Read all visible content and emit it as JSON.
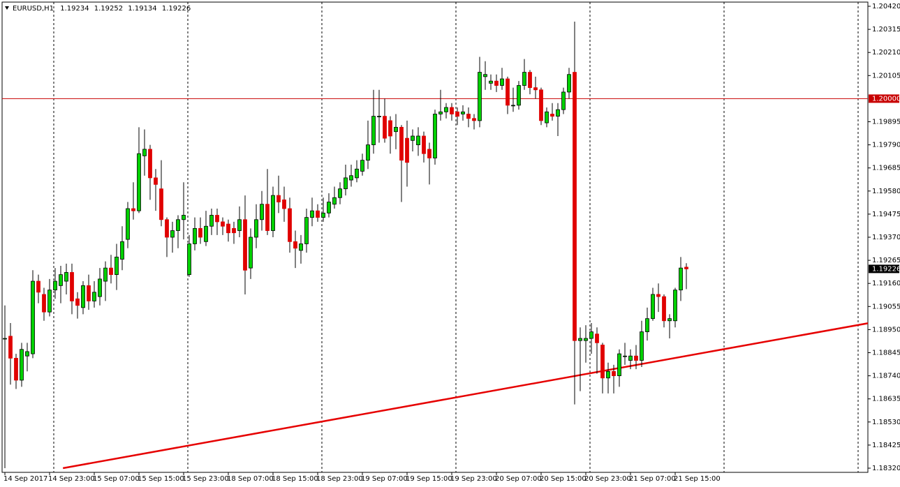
{
  "chart_data": {
    "type": "candlestick",
    "title": "EURUSD,H1",
    "categories": [
      "14 Sep 2017",
      null,
      null,
      null,
      null,
      null,
      null,
      null,
      "14 Sep 23:00",
      null,
      null,
      null,
      null,
      null,
      null,
      null,
      "15 Sep 07:00",
      null,
      null,
      null,
      null,
      null,
      null,
      null,
      "15 Sep 15:00",
      null,
      null,
      null,
      null,
      null,
      null,
      null,
      "15 Sep 23:00",
      null,
      null,
      null,
      null,
      null,
      null,
      null,
      "18 Sep 07:00",
      null,
      null,
      null,
      null,
      null,
      null,
      null,
      "18 Sep 15:00",
      null,
      null,
      null,
      null,
      null,
      null,
      null,
      "18 Sep 23:00",
      null,
      null,
      null,
      null,
      null,
      null,
      null,
      "19 Sep 07:00",
      null,
      null,
      null,
      null,
      null,
      null,
      null,
      "19 Sep 15:00",
      null,
      null,
      null,
      null,
      null,
      null,
      null,
      "19 Sep 23:00",
      null,
      null,
      null,
      null,
      null,
      null,
      null,
      "20 Sep 07:00",
      null,
      null,
      null,
      null,
      null,
      null,
      null,
      "20 Sep 15:00",
      null,
      null,
      null,
      null,
      null,
      null,
      null,
      "20 Sep 23:00",
      null,
      null,
      null,
      null,
      null,
      null,
      null,
      "21 Sep 07:00",
      null,
      null,
      null,
      null,
      null,
      null,
      null,
      "21 Sep 15:00",
      null,
      null
    ],
    "open": [
      1.1891,
      1.1892,
      1.1882,
      1.1872,
      1.1883,
      1.1884,
      1.1917,
      1.1911,
      1.1903,
      1.1913,
      1.1915,
      1.1917,
      1.1921,
      1.1909,
      1.1905,
      1.1915,
      1.1908,
      1.191,
      1.1917,
      1.1923,
      1.192,
      1.1927,
      1.1936,
      1.195,
      1.1949,
      1.1974,
      1.1977,
      1.1964,
      1.1959,
      1.1945,
      1.1937,
      1.194,
      1.1945,
      1.192,
      1.1934,
      1.1941,
      1.1935,
      1.1942,
      1.1947,
      1.1944,
      1.1943,
      1.1941,
      1.194,
      1.1945,
      1.1923,
      1.1937,
      1.1945,
      1.1952,
      1.194,
      1.1956,
      1.1954,
      1.195,
      1.1935,
      1.1931,
      1.1934,
      1.1946,
      1.1949,
      1.1946,
      1.1948,
      1.1952,
      1.1955,
      1.1959,
      1.1963,
      1.1964,
      1.1967,
      1.1972,
      1.1979,
      1.1992,
      1.1992,
      1.199,
      1.1985,
      1.1987,
      1.1982,
      1.1981,
      1.1979,
      1.1983,
      1.1977,
      1.1973,
      1.1993,
      1.1994,
      1.1996,
      1.1994,
      1.1993,
      1.1993,
      1.1991,
      1.199,
      1.201,
      1.2007,
      1.2008,
      1.2006,
      1.2009,
      1.1997,
      1.1997,
      1.2006,
      1.2012,
      1.2005,
      1.2004,
      1.1989,
      1.1993,
      1.1992,
      1.1995,
      1.2003,
      1.2012,
      1.189,
      1.189,
      1.1891,
      1.1893,
      1.1888,
      1.1873,
      1.1876,
      1.1874,
      1.1883,
      1.1881,
      1.1883,
      1.1881,
      1.1894,
      1.19,
      1.1911,
      1.191,
      1.1899,
      1.1899,
      1.1913,
      1.19234
    ],
    "high": [
      1.1906,
      1.1898,
      1.1884,
      1.1889,
      1.1889,
      1.1922,
      1.192,
      1.1914,
      1.1918,
      1.1923,
      1.1924,
      1.1925,
      1.1925,
      1.1912,
      1.1917,
      1.192,
      1.1917,
      1.1923,
      1.1926,
      1.1929,
      1.1934,
      1.1942,
      1.1953,
      1.1962,
      1.1987,
      1.1986,
      1.1979,
      1.1968,
      1.1972,
      1.1946,
      1.1944,
      1.1947,
      1.1962,
      1.1938,
      1.1946,
      1.1946,
      1.1949,
      1.195,
      1.195,
      1.1946,
      1.1945,
      1.1944,
      1.1951,
      1.1956,
      1.1941,
      1.1952,
      1.1958,
      1.1968,
      1.196,
      1.1965,
      1.196,
      1.1955,
      1.194,
      1.1938,
      1.195,
      1.1955,
      1.1952,
      1.1955,
      1.1957,
      1.196,
      1.1962,
      1.197,
      1.197,
      1.1972,
      1.1975,
      1.199,
      1.2004,
      1.2004,
      1.2,
      1.1992,
      1.1993,
      1.1988,
      1.199,
      1.1986,
      1.1987,
      1.1985,
      1.198,
      1.1995,
      1.2004,
      1.1998,
      1.1998,
      1.1996,
      1.1997,
      1.1996,
      1.1993,
      1.2019,
      1.2017,
      1.2011,
      1.2011,
      1.2014,
      1.201,
      1.2005,
      1.2008,
      1.2018,
      1.2013,
      1.201,
      1.2005,
      1.1996,
      1.1998,
      1.1998,
      1.2005,
      1.2014,
      1.2035,
      1.1896,
      1.1897,
      1.1898,
      1.1896,
      1.1889,
      1.188,
      1.1879,
      1.1886,
      1.1889,
      1.1886,
      1.1888,
      1.1899,
      1.1905,
      1.1914,
      1.1916,
      1.1911,
      1.1902,
      1.1914,
      1.1928,
      1.19252
    ],
    "low": [
      1.1832,
      1.187,
      1.1868,
      1.1869,
      1.1876,
      1.1882,
      1.1907,
      1.1899,
      1.1901,
      1.1909,
      1.1907,
      1.1911,
      1.1902,
      1.19,
      1.1902,
      1.1904,
      1.1905,
      1.1906,
      1.1908,
      1.1916,
      1.1913,
      1.1922,
      1.1932,
      1.1945,
      1.1948,
      1.1965,
      1.1954,
      1.1949,
      1.1942,
      1.1928,
      1.193,
      1.1932,
      1.1936,
      1.1919,
      1.1931,
      1.1934,
      1.1933,
      1.1938,
      1.1938,
      1.1938,
      1.1935,
      1.1934,
      1.1937,
      1.1911,
      1.1918,
      1.1932,
      1.194,
      1.1938,
      1.1937,
      1.1948,
      1.1944,
      1.193,
      1.1923,
      1.1925,
      1.193,
      1.1942,
      1.1944,
      1.1944,
      1.1946,
      1.195,
      1.1952,
      1.1956,
      1.196,
      1.1962,
      1.1965,
      1.1968,
      1.1975,
      1.198,
      1.198,
      1.1975,
      1.1977,
      1.1953,
      1.196,
      1.1976,
      1.1974,
      1.1971,
      1.1961,
      1.197,
      1.199,
      1.1991,
      1.199,
      1.1988,
      1.199,
      1.1987,
      1.1986,
      1.1987,
      1.2004,
      1.2004,
      1.2003,
      1.2004,
      1.1993,
      1.1994,
      1.1995,
      1.2004,
      1.2002,
      1.2,
      1.1988,
      1.1987,
      1.199,
      1.1983,
      1.1993,
      1.2,
      1.1861,
      1.1867,
      1.188,
      1.1884,
      1.1875,
      1.1866,
      1.1866,
      1.1866,
      1.1869,
      1.1879,
      1.1877,
      1.1877,
      1.1878,
      1.189,
      1.1899,
      1.1903,
      1.1896,
      1.1891,
      1.1896,
      1.1908,
      1.19134
    ],
    "close": [
      1.1891,
      1.1882,
      1.1872,
      1.1886,
      1.1885,
      1.1917,
      1.1912,
      1.1903,
      1.1913,
      1.1917,
      1.192,
      1.1921,
      1.1908,
      1.1906,
      1.1915,
      1.1908,
      1.1912,
      1.1918,
      1.1923,
      1.192,
      1.1928,
      1.1935,
      1.195,
      1.1949,
      1.1975,
      1.1977,
      1.1964,
      1.1961,
      1.1945,
      1.1937,
      1.194,
      1.1945,
      1.1947,
      1.1934,
      1.1941,
      1.1937,
      1.1942,
      1.1947,
      1.1944,
      1.1942,
      1.1939,
      1.1939,
      1.1945,
      1.1922,
      1.1937,
      1.1945,
      1.1952,
      1.194,
      1.1956,
      1.1953,
      1.195,
      1.1935,
      1.1932,
      1.1934,
      1.1946,
      1.1949,
      1.1946,
      1.1948,
      1.1953,
      1.1955,
      1.1959,
      1.1964,
      1.1965,
      1.1968,
      1.1972,
      1.1979,
      1.1992,
      1.1992,
      1.1982,
      1.1983,
      1.1987,
      1.1972,
      1.1971,
      1.1983,
      1.1983,
      1.1975,
      1.1973,
      1.1993,
      1.1994,
      1.1996,
      1.1993,
      1.1992,
      1.1994,
      1.1991,
      1.199,
      1.2012,
      1.2011,
      1.2008,
      1.2006,
      1.2009,
      1.1997,
      1.1997,
      1.2006,
      1.2012,
      1.2005,
      1.2004,
      1.199,
      1.1994,
      1.1992,
      1.1995,
      1.2003,
      1.2011,
      1.189,
      1.1891,
      1.1891,
      1.1894,
      1.1889,
      1.1873,
      1.1876,
      1.1874,
      1.1884,
      1.1883,
      1.1883,
      1.1881,
      1.1894,
      1.19,
      1.1911,
      1.191,
      1.1899,
      1.19,
      1.1913,
      1.1923,
      1.19226
    ],
    "up_color": "#00d000",
    "down_color": "#e00000",
    "ylim": [
      1.18301,
      1.20439
    ],
    "yticks": [
      {
        "value": 1.2042,
        "label": "1.20420"
      },
      1.20315,
      {
        "value": 1.2021,
        "label": "1.20210"
      },
      1.20105,
      1.19895,
      {
        "value": 1.1979,
        "label": "1.19790"
      },
      1.19685,
      {
        "value": 1.1958,
        "label": "1.19580"
      },
      1.19475,
      {
        "value": 1.1937,
        "label": "1.19370"
      },
      1.19265,
      {
        "value": 1.1916,
        "label": "1.19160"
      },
      1.19055,
      {
        "value": 1.1895,
        "label": "1.18950"
      },
      1.18845,
      {
        "value": 1.1874,
        "label": "1.18740"
      },
      1.18635,
      {
        "value": 1.1853,
        "label": "1.18530"
      },
      1.18425,
      {
        "value": 1.1832,
        "label": "1.18320"
      }
    ],
    "hline": {
      "value": 1.2,
      "label": "1.20000",
      "color": "#c80000"
    },
    "trendline": {
      "color": "#e60000",
      "points": [
        [
          10.4,
          1.1832
        ],
        [
          154.75,
          1.1898
        ]
      ]
    }
  }
}
